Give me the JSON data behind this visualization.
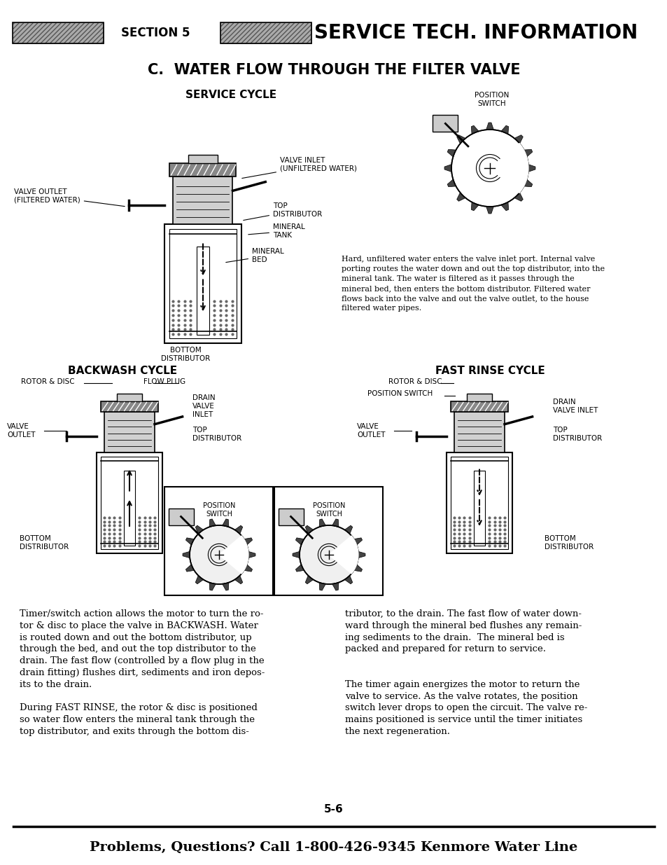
{
  "bg_color": "#ffffff",
  "page_width": 9.54,
  "page_height": 12.35,
  "dpi": 100,
  "header_section": "SECTION 5",
  "header_title": "SERVICE TECH. INFORMATION",
  "main_title": "C.  WATER FLOW THROUGH THE FILTER VALVE",
  "service_cycle_label": "SERVICE CYCLE",
  "backwash_label": "BACKWASH CYCLE",
  "fast_rinse_label": "FAST RINSE CYCLE",
  "service_desc_lines": [
    "Hard, unfiltered water enters the valve inlet port. Internal valve",
    "porting routes the water down and out the top distributor, into the",
    "mineral tank. The water is filtered as it passes through the",
    "mineral bed, then enters the bottom distributor. Filtered water",
    "flows back into the valve and out the valve outlet, to the house",
    "filtered water pipes."
  ],
  "left_col_lines": [
    "Timer/switch action allows the motor to turn the ro-",
    "tor & disc to place the valve in BACKWASH. Water",
    "is routed down and out the bottom distributor, up",
    "through the bed, and out the top distributor to the",
    "drain. The fast flow (controlled by a flow plug in the",
    "drain fitting) flushes dirt, sediments and iron depos-",
    "its to the drain.",
    "",
    "During FAST RINSE, the rotor & disc is positioned",
    "so water flow enters the mineral tank through the",
    "top distributor, and exits through the bottom dis-"
  ],
  "right_col_lines": [
    "tributor, to the drain. The fast flow of water down-",
    "ward through the mineral bed flushes any remain-",
    "ing sediments to the drain.  The mineral bed is",
    "packed and prepared for return to service.",
    "",
    "",
    "The timer again energizes the motor to return the",
    "valve to service. As the valve rotates, the position",
    "switch lever drops to open the circuit. The valve re-",
    "mains positioned is service until the timer initiates",
    "the next regeneration."
  ],
  "page_num": "5-6",
  "footer_text": "Problems, Questions? Call 1-800-426-9345 Kenmore Water Line"
}
